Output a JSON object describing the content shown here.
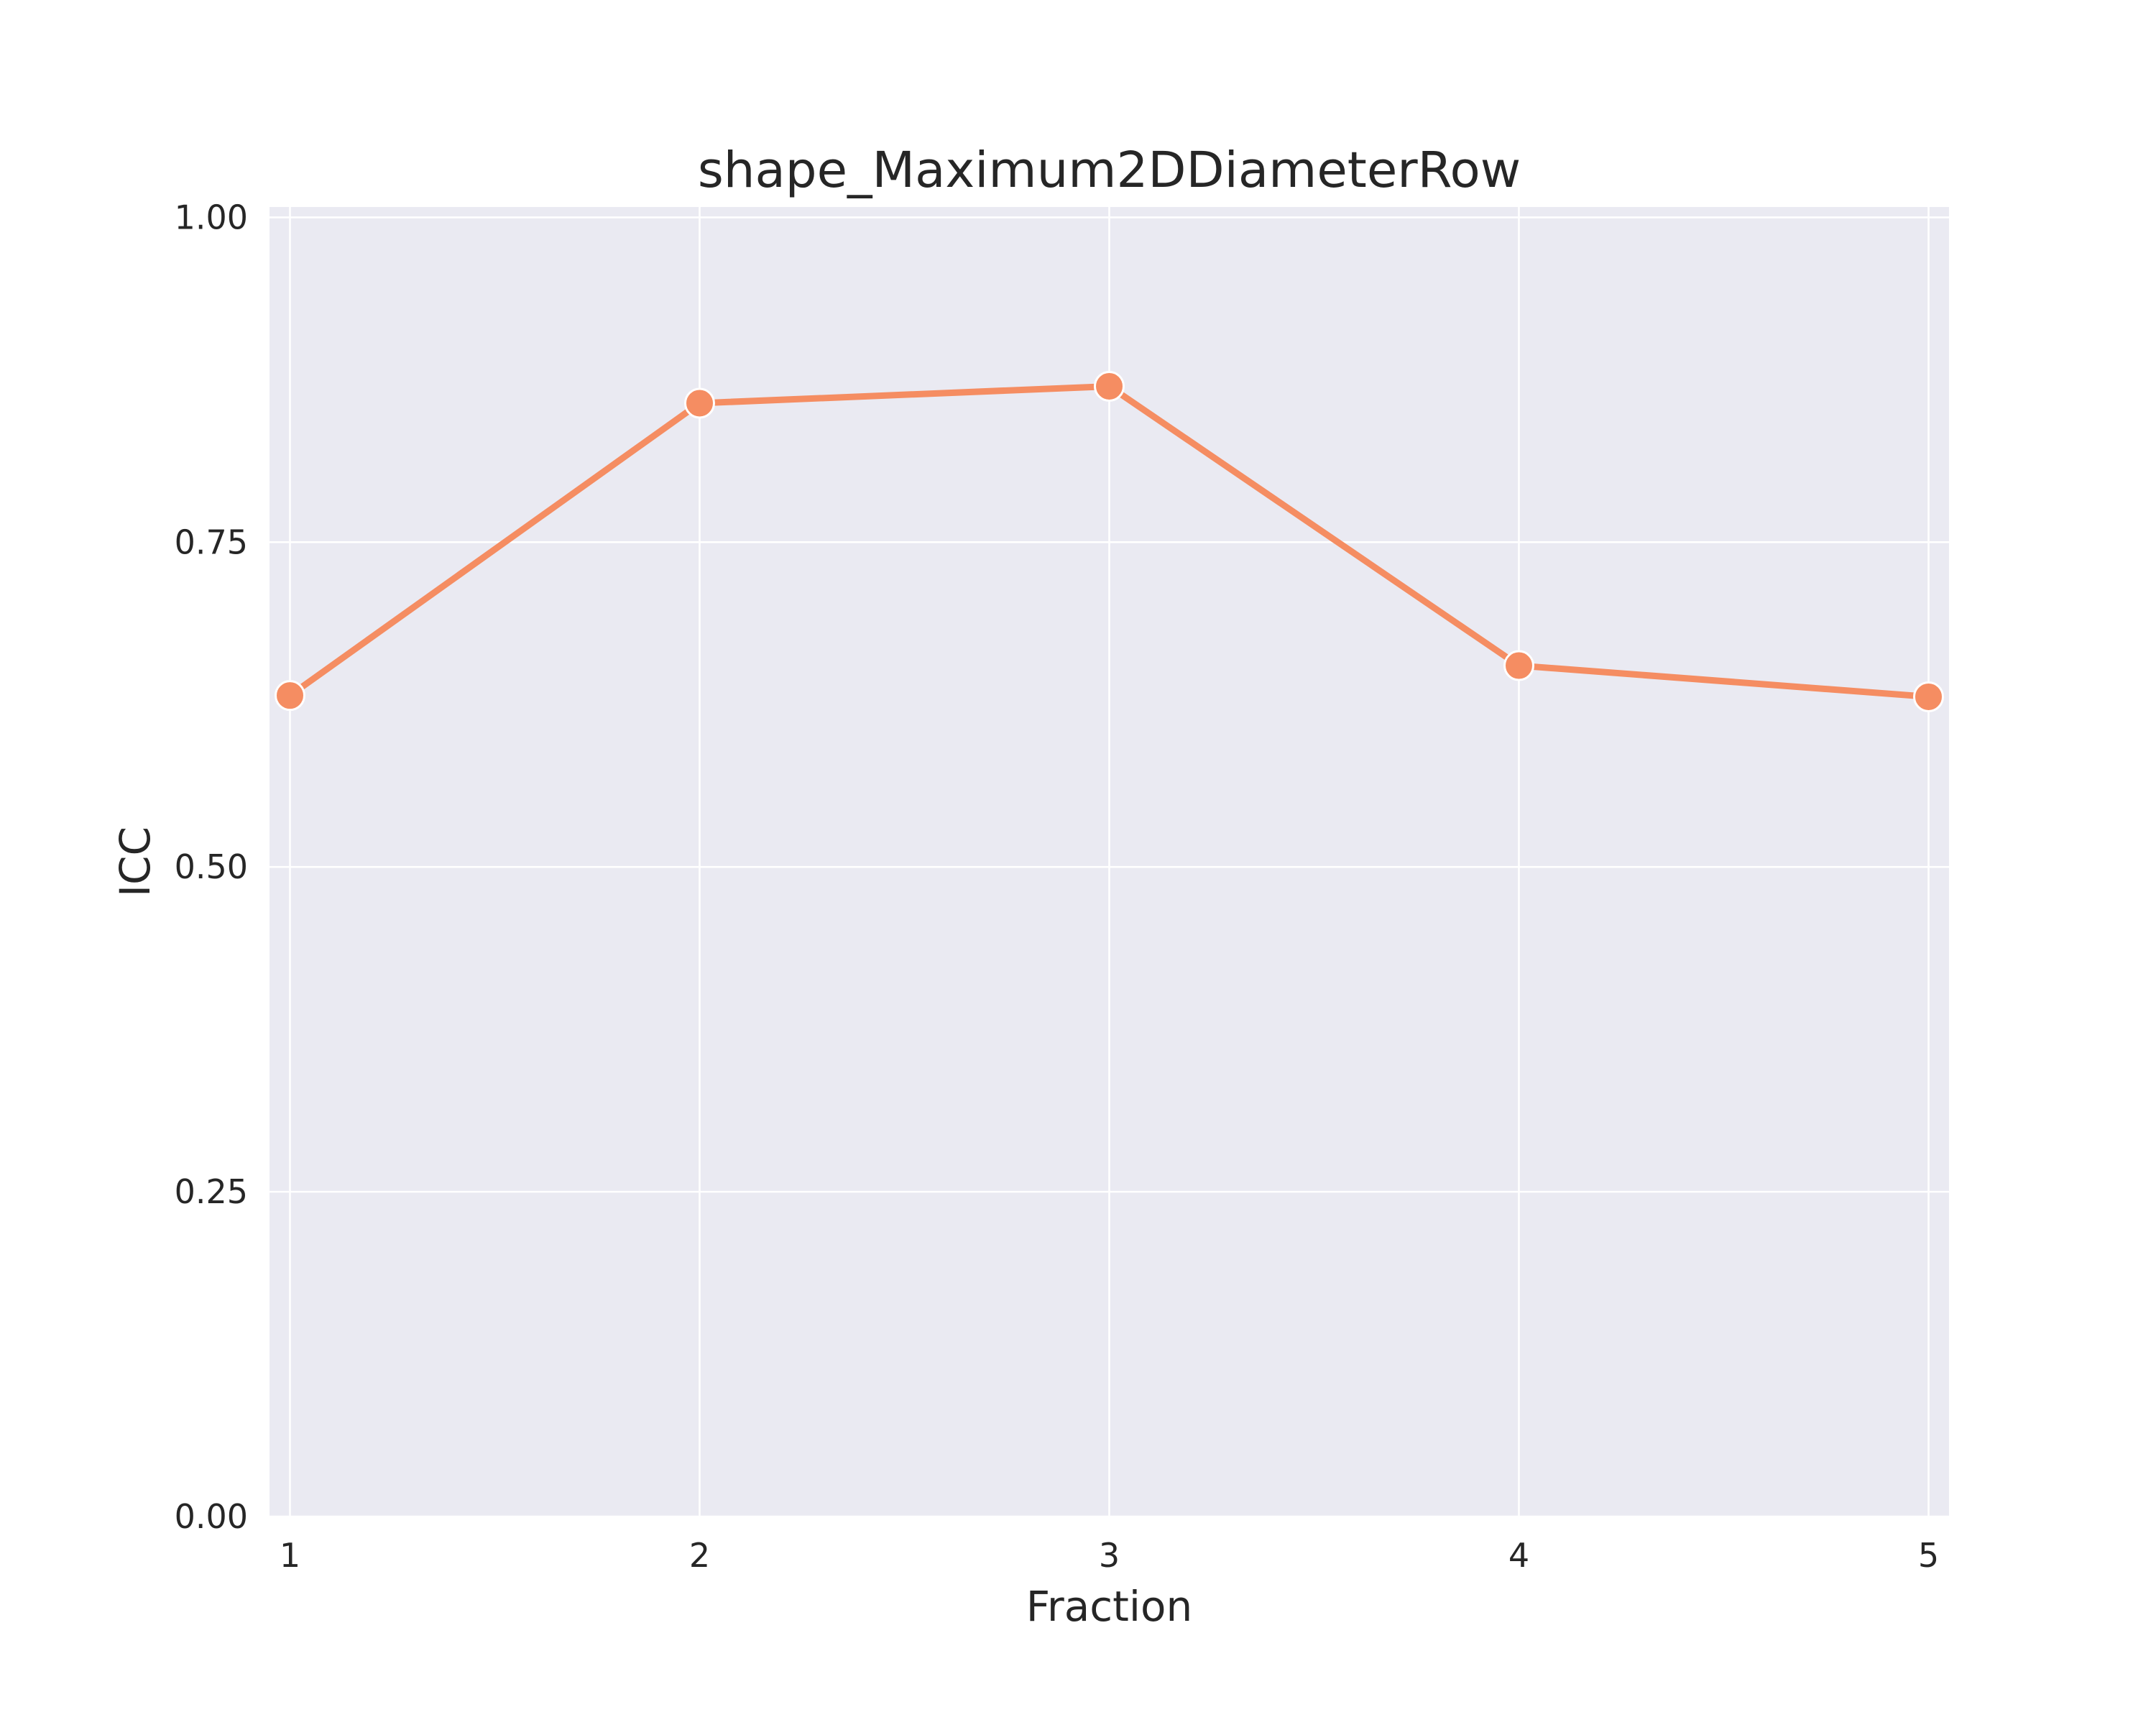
{
  "chart_data": {
    "type": "line",
    "title": "shape_Maximum2DDiameterRow",
    "xlabel": "Fraction",
    "ylabel": "ICC",
    "x": [
      1,
      2,
      3,
      4,
      5
    ],
    "x_tick_labels": [
      "1",
      "2",
      "3",
      "4",
      "5"
    ],
    "y_ticks": [
      0.0,
      0.25,
      0.5,
      0.75,
      1.0
    ],
    "y_tick_labels": [
      "0.00",
      "0.25",
      "0.50",
      "0.75",
      "1.00"
    ],
    "xlim": [
      0.95,
      5.05
    ],
    "ylim": [
      0.0,
      1.008
    ],
    "series": [
      {
        "values": [
          0.632,
          0.857,
          0.87,
          0.655,
          0.631
        ],
        "color": "#f58d62",
        "marker": "circle"
      }
    ],
    "grid": true,
    "background_color": "#eaeaf2",
    "legend": false
  }
}
